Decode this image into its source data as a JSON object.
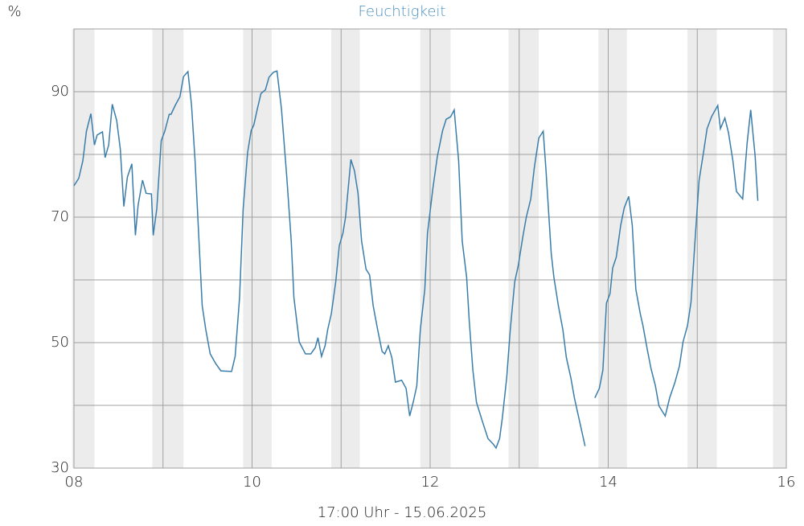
{
  "chart_data": {
    "type": "line",
    "title": "Feuchtigkeit",
    "y_unit": "%",
    "x_label": "17:00 Uhr - 15.06.2025",
    "color": "#3a7daa",
    "x": [
      8.0,
      8.054,
      8.1,
      8.14,
      8.19,
      8.23,
      8.26,
      8.32,
      8.35,
      8.39,
      8.43,
      8.48,
      8.52,
      8.56,
      8.6,
      8.65,
      8.69,
      8.72,
      8.77,
      8.81,
      8.87,
      8.89,
      8.93,
      8.98,
      9.02,
      9.07,
      9.09,
      9.14,
      9.19,
      9.23,
      9.28,
      9.32,
      9.36,
      9.4,
      9.44,
      9.48,
      9.53,
      9.59,
      9.65,
      9.77,
      9.81,
      9.86,
      9.9,
      9.95,
      9.99,
      10.02,
      10.06,
      10.1,
      10.15,
      10.19,
      10.24,
      10.28,
      10.33,
      10.39,
      10.44,
      10.47,
      10.53,
      10.6,
      10.66,
      10.71,
      10.74,
      10.78,
      10.82,
      10.85,
      10.89,
      10.94,
      10.98,
      11.02,
      11.05,
      11.11,
      11.15,
      11.19,
      11.23,
      11.28,
      11.32,
      11.36,
      11.41,
      11.46,
      11.49,
      11.53,
      11.57,
      11.61,
      11.68,
      11.73,
      11.77,
      11.81,
      11.85,
      11.89,
      11.94,
      11.97,
      12.03,
      12.08,
      12.14,
      12.18,
      12.23,
      12.27,
      12.32,
      12.36,
      12.41,
      12.44,
      12.48,
      12.52,
      12.59,
      12.65,
      12.71,
      12.74,
      12.78,
      12.81,
      12.86,
      12.9,
      12.95,
      12.99,
      13.04,
      13.08,
      13.13,
      13.17,
      13.22,
      13.27,
      13.3,
      13.36,
      13.39,
      13.44,
      13.49,
      13.53,
      13.58,
      13.62,
      13.69,
      13.74,
      13.8,
      13.85,
      13.9,
      13.94,
      13.98,
      14.02,
      14.05,
      14.09,
      14.14,
      14.18,
      14.23,
      14.27,
      14.31,
      14.36,
      14.39,
      14.44,
      14.48,
      14.53,
      14.57,
      14.64,
      14.69,
      14.75,
      14.8,
      14.84,
      14.89,
      14.93,
      14.98,
      15.02,
      15.07,
      15.11,
      15.16,
      15.23,
      15.26,
      15.31,
      15.35,
      15.4,
      15.44,
      15.51,
      15.56,
      15.6,
      15.65,
      15.68
    ],
    "values": [
      75.0,
      76.2,
      79.0,
      83.7,
      86.5,
      81.5,
      83.1,
      83.6,
      79.5,
      81.5,
      88.0,
      85.4,
      80.9,
      71.7,
      76.4,
      78.5,
      67.1,
      71.9,
      75.9,
      73.8,
      73.7,
      67.1,
      71.3,
      82.2,
      83.7,
      86.4,
      86.4,
      87.9,
      89.2,
      92.4,
      93.2,
      87.9,
      79.0,
      67.4,
      55.9,
      52.1,
      48.2,
      46.7,
      45.5,
      45.4,
      47.8,
      57.2,
      71.3,
      80.3,
      83.8,
      84.7,
      87.3,
      89.7,
      90.3,
      92.3,
      93.1,
      93.3,
      87.3,
      76.4,
      66.2,
      57.2,
      50.1,
      48.2,
      48.2,
      49.2,
      50.8,
      47.8,
      49.5,
      52.1,
      54.6,
      59.7,
      65.5,
      67.4,
      70.0,
      79.2,
      77.4,
      73.8,
      66.2,
      61.7,
      60.8,
      55.9,
      52.1,
      48.6,
      48.2,
      49.5,
      47.6,
      43.7,
      44.0,
      42.7,
      38.3,
      40.5,
      43.1,
      52.1,
      58.5,
      67.4,
      74.5,
      79.6,
      83.8,
      85.6,
      86.0,
      87.1,
      79.0,
      66.2,
      60.4,
      53.3,
      45.6,
      40.5,
      37.3,
      34.7,
      33.8,
      33.2,
      34.7,
      37.9,
      44.4,
      52.1,
      59.7,
      62.3,
      66.8,
      70.0,
      72.9,
      77.9,
      82.6,
      83.7,
      77.7,
      64.2,
      60.4,
      55.9,
      52.1,
      47.6,
      44.4,
      41.2,
      36.7,
      33.5,
      null,
      41.2,
      42.7,
      45.6,
      56.3,
      57.8,
      61.9,
      63.6,
      68.7,
      71.5,
      73.3,
      68.7,
      58.5,
      54.6,
      52.7,
      48.8,
      45.9,
      43.1,
      39.9,
      38.3,
      41.2,
      43.7,
      46.3,
      50.1,
      52.7,
      56.5,
      67.4,
      75.8,
      80.3,
      84.1,
      86.0,
      87.8,
      84.1,
      85.8,
      83.5,
      79.0,
      74.1,
      72.9,
      81.8,
      87.1,
      79.7,
      72.6
    ],
    "xlim": [
      8,
      16
    ],
    "xticks": [
      {
        "value": 8,
        "label": "08"
      },
      {
        "value": 10,
        "label": "10"
      },
      12,
      14,
      16
    ],
    "xminor": [
      9,
      11,
      13,
      15
    ],
    "ylim": [
      30,
      100
    ],
    "yticks": [
      30,
      50,
      70,
      90
    ],
    "yminor": [
      40,
      60,
      80,
      100
    ],
    "night_bands": [
      [
        7.98,
        8.23
      ],
      [
        8.88,
        9.23
      ],
      [
        9.9,
        10.22
      ],
      [
        10.89,
        11.21
      ],
      [
        11.89,
        12.23
      ],
      [
        12.88,
        13.22
      ],
      [
        13.89,
        14.21
      ],
      [
        14.89,
        15.22
      ],
      [
        15.85,
        16
      ]
    ],
    "grid": true
  }
}
